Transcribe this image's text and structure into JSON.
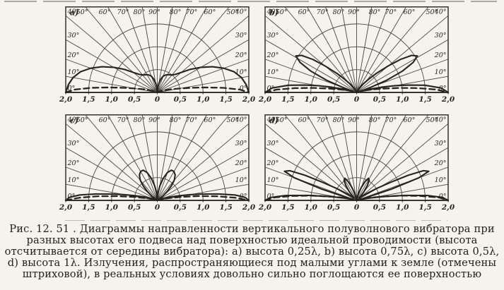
{
  "caption": {
    "lines": [
      "Рис. 12. 51 . Диаграммы направленности вертикального полуволнового вибратора при",
      "разных высотах его подвеса над поверхностью идеальной проводимости (высота",
      "отсчитывается от середины вибратора): a) высота 0,25λ, b) высота 0,75λ, c) высота 0,5λ,",
      "d) высота 1λ. Излучения, распространяющиеся под малыми углами к земле (отмечены",
      "штриховой), в реальных условиях довольно сильно поглощаются ее поверхностью"
    ]
  },
  "chart_data": {
    "type": "line",
    "subtype": "polar-half-plane-radiation-pattern",
    "title": "Диаграммы направленности вертикального полуволнового вибратора",
    "r_axis": {
      "max": 2.0,
      "grid_circles": [
        0.5,
        1.0,
        1.5
      ],
      "tick_values": [
        -2.0,
        -1.5,
        -1.0,
        -0.5,
        0,
        0.5,
        1.0,
        1.5,
        2.0
      ],
      "tick_labels": [
        "2,0",
        "1,5",
        "1,0",
        "0,5",
        "0",
        "0,5",
        "1,0",
        "1,5",
        "2,0"
      ]
    },
    "angle_axis": {
      "ray_step_deg": 10,
      "top_label_angles": [
        50,
        60,
        70,
        80,
        90,
        80,
        70,
        60,
        50
      ],
      "top_label_signs": [
        -1,
        -1,
        -1,
        -1,
        0,
        1,
        1,
        1,
        1
      ],
      "top_labels": [
        "50°",
        "60°",
        "70°",
        "80°",
        "90°",
        "80°",
        "70°",
        "60°",
        "50°"
      ],
      "side_label_angles": [
        40,
        30,
        20,
        10,
        0
      ],
      "side_labels": [
        "40°",
        "30°",
        "20°",
        "10°",
        "0°"
      ]
    },
    "plots": [
      {
        "id": "a",
        "corner_label": "a)",
        "height": "0,25λ",
        "series": [
          {
            "name": "pattern",
            "style": "solid",
            "points": [
              [
                0,
                2.0
              ],
              [
                5,
                1.95
              ],
              [
                10,
                1.87
              ],
              [
                15,
                1.74
              ],
              [
                20,
                1.55
              ],
              [
                25,
                1.33
              ],
              [
                30,
                1.1
              ],
              [
                35,
                0.88
              ],
              [
                40,
                0.68
              ],
              [
                45,
                0.56
              ],
              [
                50,
                0.5
              ],
              [
                55,
                0.47
              ],
              [
                60,
                0.45
              ],
              [
                65,
                0.42
              ],
              [
                70,
                0.38
              ],
              [
                75,
                0.3
              ],
              [
                80,
                0.2
              ],
              [
                85,
                0.1
              ],
              [
                90,
                0
              ]
            ]
          },
          {
            "name": "low-angle-radiation",
            "style": "dashed",
            "points": [
              [
                0,
                2.0
              ],
              [
                2,
                1.8
              ],
              [
                4,
                1.45
              ],
              [
                6,
                1.05
              ],
              [
                8,
                0.72
              ],
              [
                10,
                0.5
              ],
              [
                13,
                0.3
              ],
              [
                16,
                0.18
              ],
              [
                20,
                0.1
              ],
              [
                25,
                0.05
              ],
              [
                30,
                0.03
              ],
              [
                40,
                0.01
              ],
              [
                90,
                0
              ]
            ]
          }
        ]
      },
      {
        "id": "b",
        "corner_label": "b)",
        "height": "0,75λ",
        "series": [
          {
            "name": "pattern",
            "style": "solid",
            "points": [
              [
                0,
                2.0
              ],
              [
                3,
                1.85
              ],
              [
                6,
                1.5
              ],
              [
                8,
                1.15
              ],
              [
                10,
                0.85
              ],
              [
                12,
                0.55
              ],
              [
                14,
                0.3
              ],
              [
                16,
                0.12
              ],
              [
                18,
                0.12
              ],
              [
                20,
                0.32
              ],
              [
                22,
                0.7
              ],
              [
                25,
                1.1
              ],
              [
                28,
                1.4
              ],
              [
                31,
                1.55
              ],
              [
                34,
                1.45
              ],
              [
                37,
                1.2
              ],
              [
                40,
                0.9
              ],
              [
                44,
                0.6
              ],
              [
                48,
                0.38
              ],
              [
                53,
                0.22
              ],
              [
                58,
                0.12
              ],
              [
                65,
                0.05
              ],
              [
                75,
                0.02
              ],
              [
                90,
                0
              ]
            ]
          },
          {
            "name": "low-angle-radiation",
            "style": "dashed",
            "points": [
              [
                0,
                2.0
              ],
              [
                2,
                1.75
              ],
              [
                4,
                1.35
              ],
              [
                6,
                0.95
              ],
              [
                8,
                0.6
              ],
              [
                10,
                0.38
              ],
              [
                13,
                0.22
              ],
              [
                16,
                0.12
              ],
              [
                20,
                0.06
              ],
              [
                30,
                0.02
              ],
              [
                90,
                0
              ]
            ]
          }
        ]
      },
      {
        "id": "c",
        "corner_label": "c)",
        "height": "0,5λ",
        "series": [
          {
            "name": "pattern",
            "style": "solid",
            "points": [
              [
                0,
                2.0
              ],
              [
                2,
                1.92
              ],
              [
                4,
                1.7
              ],
              [
                6,
                1.35
              ],
              [
                8,
                1.0
              ],
              [
                10,
                0.72
              ],
              [
                12,
                0.5
              ],
              [
                15,
                0.3
              ],
              [
                18,
                0.17
              ],
              [
                22,
                0.09
              ],
              [
                26,
                0.05
              ],
              [
                30,
                0.03
              ],
              [
                34,
                0.06
              ],
              [
                38,
                0.15
              ],
              [
                42,
                0.3
              ],
              [
                46,
                0.45
              ],
              [
                50,
                0.58
              ],
              [
                55,
                0.68
              ],
              [
                60,
                0.73
              ],
              [
                65,
                0.73
              ],
              [
                70,
                0.65
              ],
              [
                75,
                0.5
              ],
              [
                80,
                0.32
              ],
              [
                85,
                0.15
              ],
              [
                90,
                0
              ]
            ]
          },
          {
            "name": "low-angle-radiation",
            "style": "dashed",
            "points": [
              [
                0,
                2.0
              ],
              [
                2,
                1.7
              ],
              [
                4,
                1.3
              ],
              [
                6,
                0.9
              ],
              [
                8,
                0.55
              ],
              [
                10,
                0.33
              ],
              [
                13,
                0.18
              ],
              [
                16,
                0.1
              ],
              [
                20,
                0.05
              ],
              [
                30,
                0.02
              ],
              [
                90,
                0
              ]
            ]
          }
        ]
      },
      {
        "id": "d",
        "corner_label": "d)",
        "height": "1λ",
        "series": [
          {
            "name": "pattern",
            "style": "solid",
            "points": [
              [
                0,
                2.0
              ],
              [
                2,
                1.88
              ],
              [
                4,
                1.55
              ],
              [
                6,
                1.05
              ],
              [
                8,
                0.6
              ],
              [
                10,
                0.3
              ],
              [
                12,
                0.13
              ],
              [
                14,
                0.06
              ],
              [
                16,
                0.2
              ],
              [
                18,
                0.8
              ],
              [
                20,
                1.45
              ],
              [
                22,
                1.7
              ],
              [
                24,
                1.6
              ],
              [
                26,
                1.25
              ],
              [
                28,
                0.85
              ],
              [
                31,
                0.5
              ],
              [
                34,
                0.28
              ],
              [
                38,
                0.15
              ],
              [
                42,
                0.08
              ],
              [
                46,
                0.12
              ],
              [
                50,
                0.25
              ],
              [
                54,
                0.4
              ],
              [
                58,
                0.52
              ],
              [
                62,
                0.55
              ],
              [
                66,
                0.45
              ],
              [
                70,
                0.3
              ],
              [
                75,
                0.15
              ],
              [
                80,
                0.07
              ],
              [
                85,
                0.03
              ],
              [
                90,
                0
              ]
            ]
          },
          {
            "name": "low-angle-radiation",
            "style": "dashed",
            "points": [
              [
                0,
                2.0
              ],
              [
                2,
                1.8
              ],
              [
                4,
                1.4
              ],
              [
                6,
                1.0
              ],
              [
                8,
                0.62
              ],
              [
                10,
                0.38
              ],
              [
                13,
                0.2
              ],
              [
                16,
                0.1
              ],
              [
                20,
                0.05
              ],
              [
                30,
                0.02
              ],
              [
                90,
                0
              ]
            ]
          }
        ]
      }
    ],
    "colors": {
      "ink": "#27241e",
      "grid": "#4a463e",
      "paper": "#f5f3ee"
    }
  }
}
